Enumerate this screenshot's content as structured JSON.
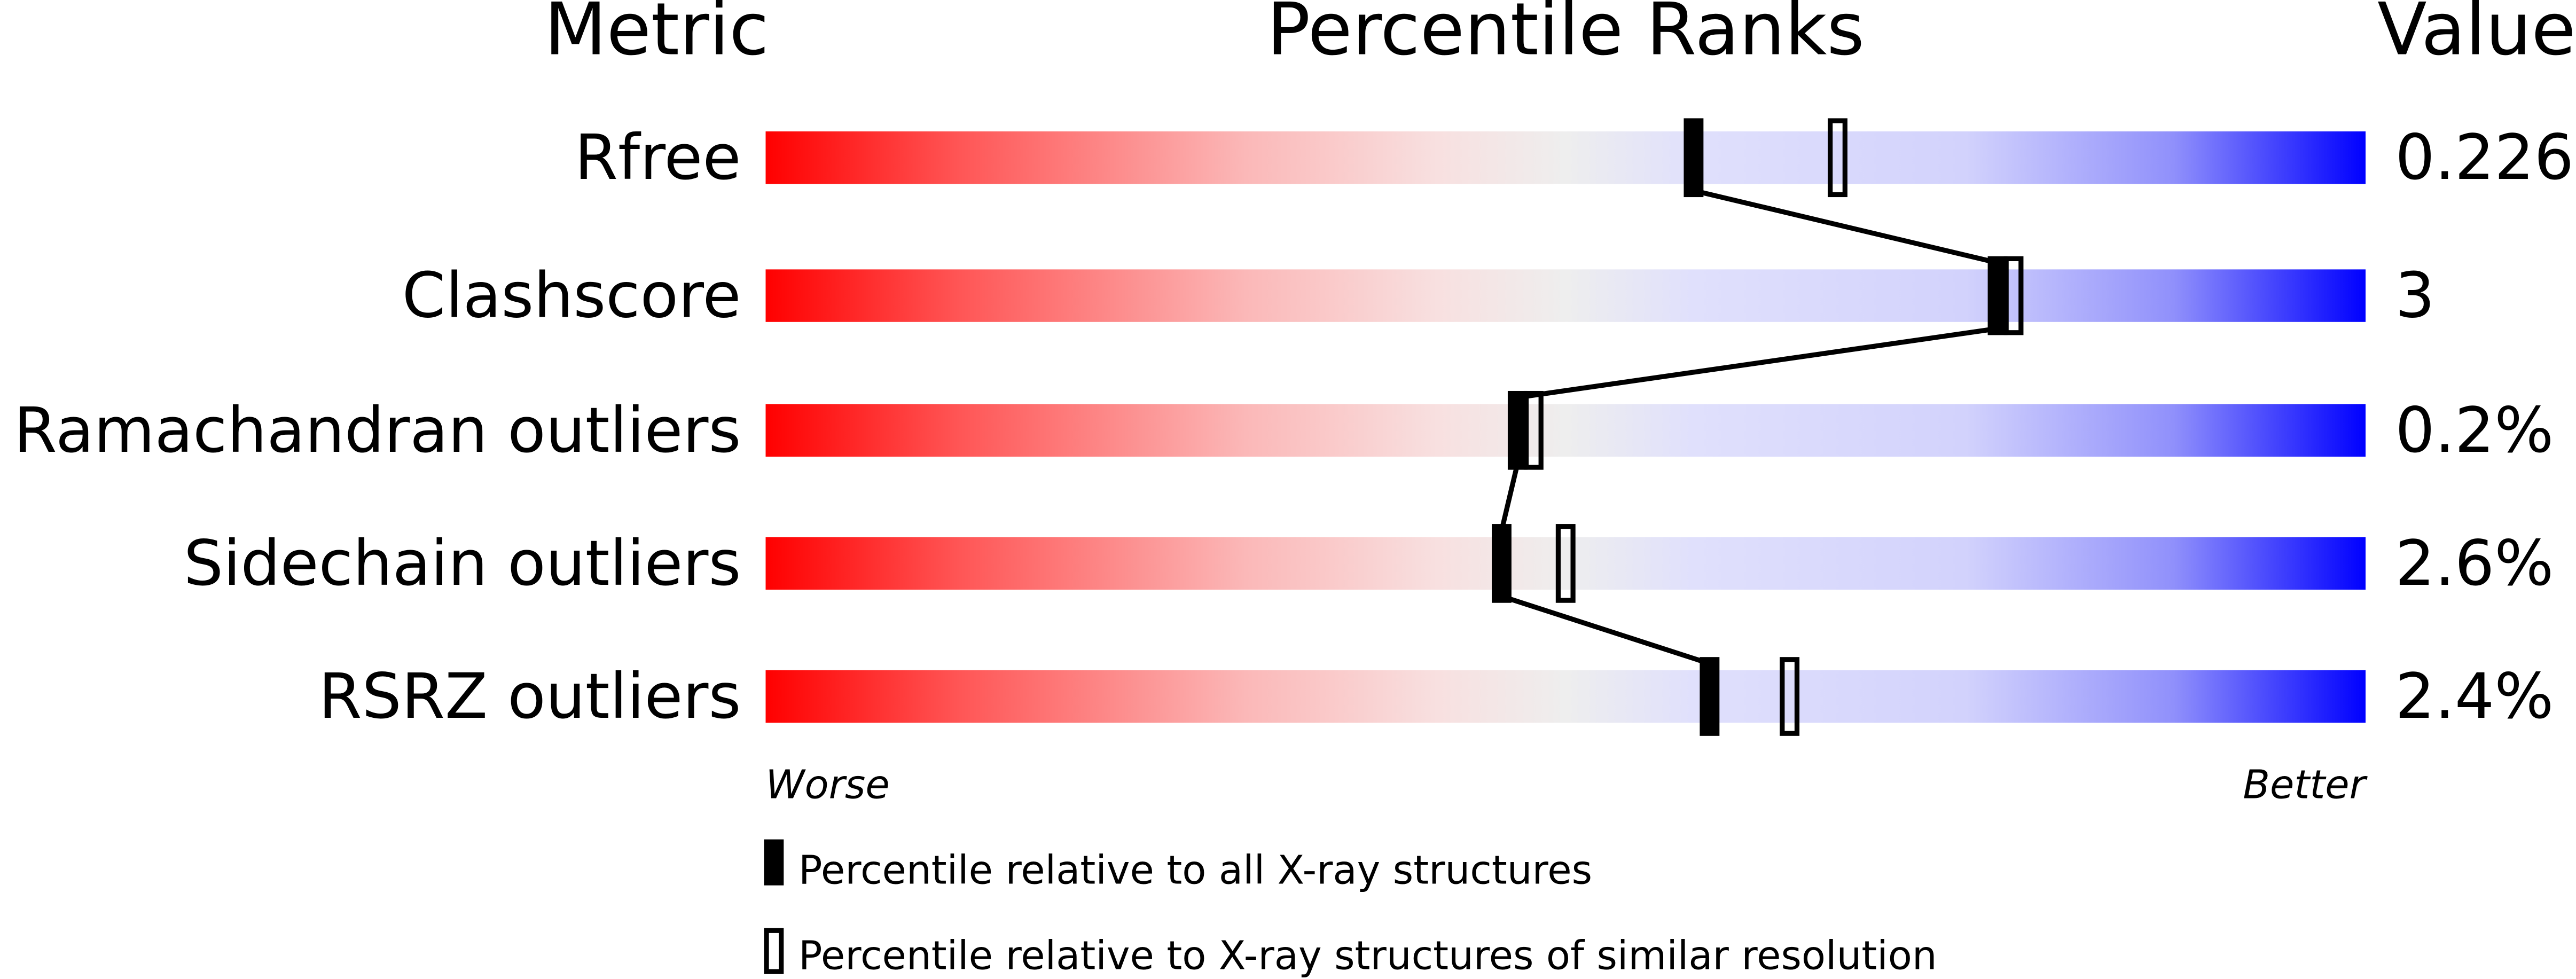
{
  "chart_data": {
    "type": "bar",
    "headers": {
      "metric": "Metric",
      "ranks": "Percentile Ranks",
      "value": "Value"
    },
    "xlim": [
      0,
      100
    ],
    "axis_labels": {
      "left": "Worse",
      "right": "Better"
    },
    "metrics": [
      {
        "name": "Rfree",
        "value": "0.226",
        "percentile_all": 58,
        "percentile_similar": 67
      },
      {
        "name": "Clashscore",
        "value": "3",
        "percentile_all": 77,
        "percentile_similar": 78
      },
      {
        "name": "Ramachandran outliers",
        "value": "0.2%",
        "percentile_all": 47,
        "percentile_similar": 48
      },
      {
        "name": "Sidechain outliers",
        "value": "2.6%",
        "percentile_all": 46,
        "percentile_similar": 50
      },
      {
        "name": "RSRZ outliers",
        "value": "2.4%",
        "percentile_all": 59,
        "percentile_similar": 64
      }
    ],
    "legend": [
      {
        "marker": "filled",
        "label": "Percentile relative to all X-ray structures"
      },
      {
        "marker": "open",
        "label": "Percentile relative to X-ray structures of similar resolution"
      }
    ],
    "colors": {
      "worse": "#ff0000",
      "middle": "#eeeeee",
      "better": "#0000ff",
      "marker": "#000000"
    }
  }
}
